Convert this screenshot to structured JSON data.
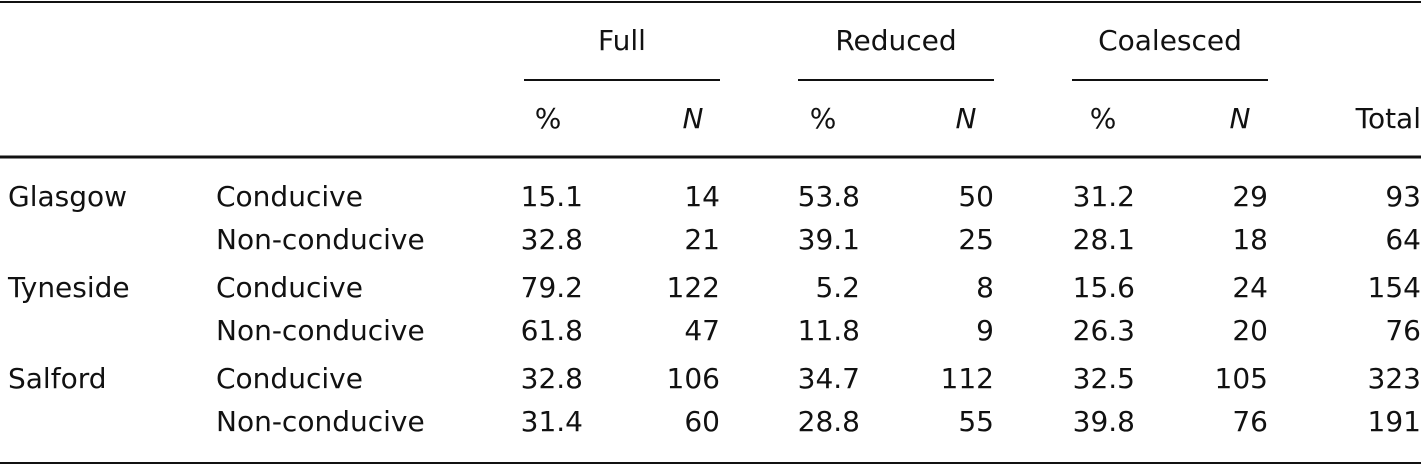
{
  "table": {
    "column_groups": [
      "Full",
      "Reduced",
      "Coalesced"
    ],
    "subheaders": [
      "%",
      "N",
      "%",
      "N",
      "%",
      "N",
      "Total"
    ],
    "groups": [
      {
        "city": "Glasgow",
        "rows": [
          {
            "context": "Conducive",
            "values": [
              15.1,
              14,
              53.8,
              50,
              31.2,
              29,
              93
            ]
          },
          {
            "context": "Non-conducive",
            "values": [
              32.8,
              21,
              39.1,
              25,
              28.1,
              18,
              64
            ]
          }
        ]
      },
      {
        "city": "Tyneside",
        "rows": [
          {
            "context": "Conducive",
            "values": [
              79.2,
              122,
              5.2,
              8,
              15.6,
              24,
              154
            ]
          },
          {
            "context": "Non-conducive",
            "values": [
              61.8,
              47,
              11.8,
              9,
              26.3,
              20,
              76
            ]
          }
        ]
      },
      {
        "city": "Salford",
        "rows": [
          {
            "context": "Conducive",
            "values": [
              32.8,
              106,
              34.7,
              112,
              32.5,
              105,
              323
            ]
          },
          {
            "context": "Non-conducive",
            "values": [
              31.4,
              60,
              28.8,
              55,
              39.8,
              76,
              191
            ]
          }
        ]
      }
    ]
  }
}
